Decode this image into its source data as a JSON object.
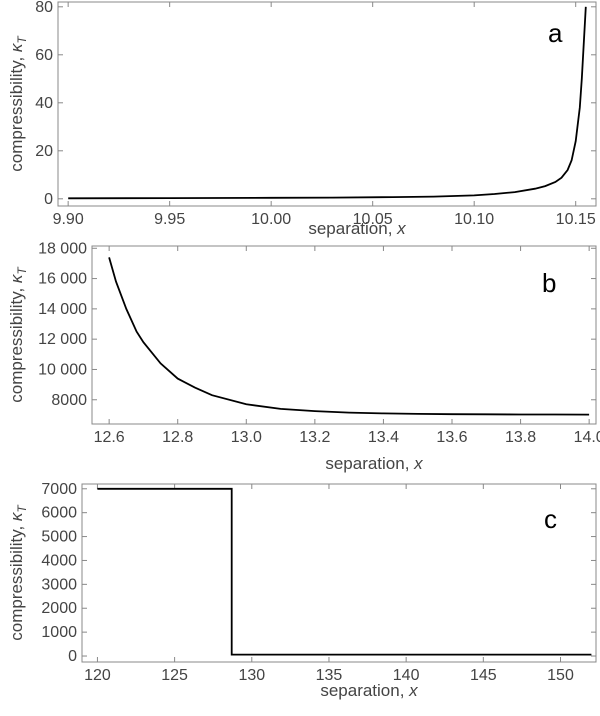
{
  "chart_data": [
    {
      "type": "line",
      "panel_label": "a",
      "xlabel": "separation, ",
      "xlabel_var": "x",
      "ylabel": "compressibility, ",
      "ylabel_var": "κ",
      "ylabel_sub": "T",
      "xlim": [
        9.895,
        10.16
      ],
      "ylim": [
        -3,
        82
      ],
      "x_ticks": [
        9.9,
        9.95,
        10.0,
        10.05,
        10.1,
        10.15
      ],
      "x_tick_labels": [
        "9.90",
        "9.95",
        "10.00",
        "10.05",
        "10.10",
        "10.15"
      ],
      "y_ticks": [
        0,
        20,
        40,
        60,
        80
      ],
      "y_tick_labels": [
        "0",
        "20",
        "40",
        "60",
        "80"
      ],
      "series": [
        {
          "x": [
            9.9,
            9.95,
            10.0,
            10.03,
            10.06,
            10.08,
            10.1,
            10.11,
            10.12,
            10.13,
            10.135,
            10.14,
            10.143,
            10.146,
            10.148,
            10.15,
            10.152,
            10.153,
            10.154,
            10.155
          ],
          "y": [
            0.2,
            0.3,
            0.4,
            0.5,
            0.7,
            0.9,
            1.4,
            2.0,
            2.8,
            4.2,
            5.3,
            7.0,
            8.8,
            12,
            16,
            24,
            38,
            50,
            65,
            80
          ]
        }
      ]
    },
    {
      "type": "line",
      "panel_label": "b",
      "xlabel": "separation, ",
      "xlabel_var": "x",
      "ylabel": "compressibility, ",
      "ylabel_var": "κ",
      "ylabel_sub": "T",
      "xlim": [
        12.55,
        14.02
      ],
      "ylim": [
        6400,
        18150
      ],
      "x_ticks": [
        12.6,
        12.8,
        13.0,
        13.2,
        13.4,
        13.6,
        13.8,
        14.0
      ],
      "x_tick_labels": [
        "12.6",
        "12.8",
        "13.0",
        "13.2",
        "13.4",
        "13.6",
        "13.8",
        "14.0"
      ],
      "y_ticks": [
        8000,
        10000,
        12000,
        14000,
        16000,
        18000
      ],
      "y_tick_labels": [
        "8000",
        "10 000",
        "12 000",
        "14 000",
        "16 000",
        "18 000"
      ],
      "series": [
        {
          "x": [
            12.6,
            12.62,
            12.65,
            12.68,
            12.7,
            12.75,
            12.8,
            12.85,
            12.9,
            13.0,
            13.1,
            13.2,
            13.3,
            13.4,
            13.5,
            13.6,
            13.7,
            13.8,
            13.9,
            14.0
          ],
          "y": [
            17400,
            15800,
            14000,
            12500,
            11800,
            10400,
            9400,
            8800,
            8300,
            7700,
            7400,
            7250,
            7150,
            7100,
            7070,
            7050,
            7040,
            7030,
            7030,
            7020
          ]
        }
      ]
    },
    {
      "type": "line",
      "panel_label": "c",
      "xlabel": "separation, ",
      "xlabel_var": "x",
      "ylabel": "compressibility, ",
      "ylabel_var": "κ",
      "ylabel_sub": "T",
      "xlim": [
        119,
        152.3
      ],
      "ylim": [
        -250,
        7200
      ],
      "x_ticks": [
        120,
        125,
        130,
        135,
        140,
        145,
        150
      ],
      "x_tick_labels": [
        "120",
        "125",
        "130",
        "135",
        "140",
        "145",
        "150"
      ],
      "y_ticks": [
        0,
        1000,
        2000,
        3000,
        4000,
        5000,
        6000,
        7000
      ],
      "y_tick_labels": [
        "0",
        "1000",
        "2000",
        "3000",
        "4000",
        "5000",
        "6000",
        "7000"
      ],
      "series": [
        {
          "x": [
            120,
            128.7,
            128.7,
            152
          ],
          "y": [
            7000,
            7000,
            60,
            60
          ]
        }
      ]
    }
  ]
}
